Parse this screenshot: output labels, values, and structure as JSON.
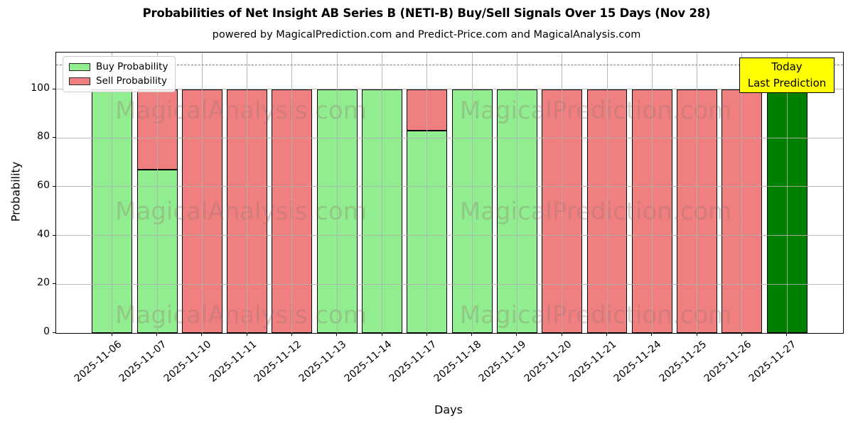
{
  "chart_data": {
    "type": "bar",
    "stacked": true,
    "title": "Probabilities of Net Insight AB Series B (NETI-B) Buy/Sell Signals Over 15 Days (Nov 28)",
    "subtitle": "powered by MagicalPrediction.com and Predict-Price.com and MagicalAnalysis.com",
    "xlabel": "Days",
    "ylabel": "Probability",
    "ylim": [
      0,
      115
    ],
    "yticks": [
      0,
      20,
      40,
      60,
      80,
      100
    ],
    "grid": true,
    "legend_position": "upper left",
    "categories": [
      "2025-11-06",
      "2025-11-07",
      "2025-11-10",
      "2025-11-11",
      "2025-11-12",
      "2025-11-13",
      "2025-11-14",
      "2025-11-17",
      "2025-11-18",
      "2025-11-19",
      "2025-11-20",
      "2025-11-21",
      "2025-11-24",
      "2025-11-25",
      "2025-11-26",
      "2025-11-27"
    ],
    "series": [
      {
        "name": "Buy Probability",
        "color": "#90ee90",
        "values": [
          100,
          67,
          0,
          0,
          0,
          100,
          100,
          83,
          100,
          100,
          0,
          0,
          0,
          0,
          0,
          100
        ]
      },
      {
        "name": "Sell Probability",
        "color": "#f08080",
        "values": [
          0,
          33,
          100,
          100,
          100,
          0,
          0,
          17,
          0,
          0,
          100,
          100,
          100,
          100,
          100,
          0
        ]
      }
    ],
    "today_index": 15,
    "today_color": "#008000",
    "threshold_line": {
      "value": 110,
      "style": "dashed",
      "color": "#7a7a7a"
    }
  },
  "annotation": {
    "lines": [
      "Today",
      "Last Prediction"
    ],
    "bg_color": "#ffff00"
  },
  "watermarks": {
    "left_text": "MagicalAnalysis.com",
    "right_text": "MagicalPrediction.com"
  },
  "colors": {
    "bar_edge": "#000000",
    "grid": "#b0b0b0",
    "axis": "#000000"
  }
}
